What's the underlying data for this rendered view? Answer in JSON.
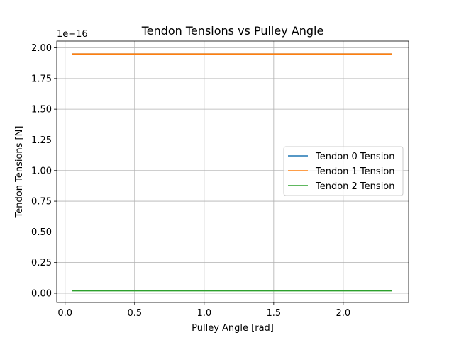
{
  "chart_data": {
    "type": "line",
    "title": "Tendon Tensions vs Pulley Angle",
    "xlabel": "Pulley Angle [rad]",
    "ylabel": "Tendon Tensions [N]",
    "y_scale_label": "1e−16",
    "xlim": [
      -0.06,
      2.47
    ],
    "ylim": [
      -0.075,
      2.055
    ],
    "xticks": [
      0.0,
      0.5,
      1.0,
      1.5,
      2.0
    ],
    "xtick_labels": [
      "0.0",
      "0.5",
      "1.0",
      "1.5",
      "2.0"
    ],
    "yticks": [
      0.0,
      0.25,
      0.5,
      0.75,
      1.0,
      1.25,
      1.5,
      1.75,
      2.0
    ],
    "ytick_labels": [
      "0.00",
      "0.25",
      "0.50",
      "0.75",
      "1.00",
      "1.25",
      "1.50",
      "1.75",
      "2.00"
    ],
    "grid": true,
    "legend_position": "center-right",
    "x": [
      0.05,
      2.35
    ],
    "series": [
      {
        "name": "Tendon 0 Tension",
        "color": "#1f77b4",
        "values": [
          1.95,
          1.95
        ]
      },
      {
        "name": "Tendon 1 Tension",
        "color": "#ff7f0e",
        "values": [
          1.95,
          1.95
        ]
      },
      {
        "name": "Tendon 2 Tension",
        "color": "#2ca02c",
        "values": [
          0.02,
          0.02
        ]
      }
    ]
  }
}
